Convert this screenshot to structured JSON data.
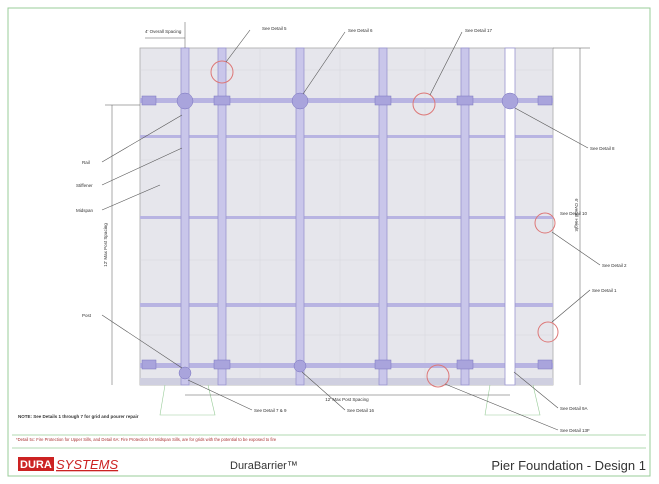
{
  "drawing": {
    "callouts": [
      "See Detail 5",
      "See Detail 6",
      "See Detail 17",
      "See Detail 8",
      "See Detail 10",
      "See Detail 2",
      "See Detail 1",
      "See Detail 7 & 9",
      "See Detail 16",
      "See Detail 9A",
      "See Detail 13F"
    ],
    "side_labels": [
      "Rail",
      "Stiffener",
      "Midspan",
      "Post"
    ],
    "dimensions": [
      "4' Overall Spacing",
      "12' Max Post Spacing",
      "6' Overall Height",
      "12' Max Post Spacing"
    ],
    "note": "NOTE: See Details 1 through 7 for grid and pourer repair",
    "footnote": "*Detail 5c: Fire Protection for Upper Sills, and Detail 6A: Fire Protection for Midspan Sills, are for grids with the potential to be exposed to fire"
  },
  "footer": {
    "logo_a": "DURA",
    "logo_b": "SYSTEMS",
    "product": "DuraBarrier™",
    "title": "Pier Foundation - Design 1"
  }
}
